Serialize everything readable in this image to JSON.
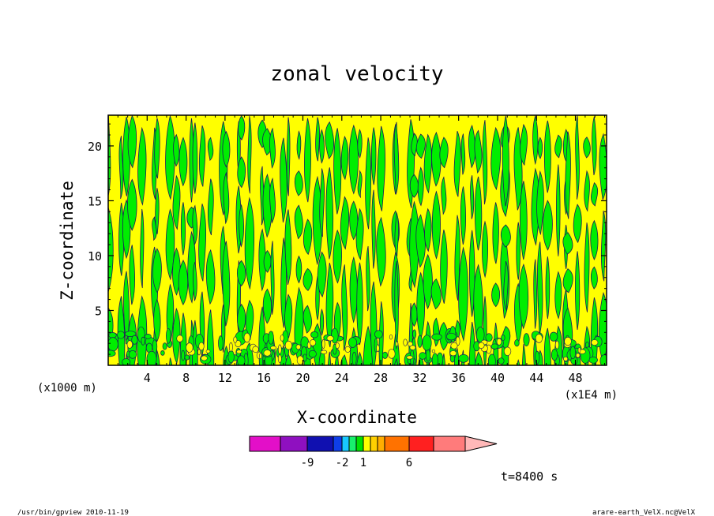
{
  "chart_data": {
    "type": "heatmap",
    "title": "zonal velocity",
    "xlabel": "X-coordinate",
    "ylabel": "Z-coordinate",
    "x_unit_left": "(x1000 m)",
    "x_unit_right": "(x1E4 m)",
    "x_ticks": [
      "4",
      "8",
      "12",
      "16",
      "20",
      "24",
      "28",
      "32",
      "36",
      "40",
      "44",
      "48"
    ],
    "x_tick_values": [
      4,
      8,
      12,
      16,
      20,
      24,
      28,
      32,
      36,
      40,
      44,
      48
    ],
    "y_ticks": [
      "5",
      "10",
      "15",
      "20"
    ],
    "y_tick_values": [
      5,
      10,
      15,
      20
    ],
    "xlim": [
      0,
      51.2
    ],
    "ylim": [
      0,
      22.8
    ],
    "dominant_fill_colors": [
      "#ffff00",
      "#00ee00"
    ],
    "colorbar": {
      "colors": [
        "#e30fc8",
        "#8f10c0",
        "#1010b0",
        "#0e3ee8",
        "#18c8ff",
        "#18f06c",
        "#00e000",
        "#ffff00",
        "#ffd000",
        "#ffae00",
        "#ff7200",
        "#ff2020",
        "#ff7b7b",
        "#ffb8b8"
      ],
      "labels": [
        "-9",
        "-2",
        "1",
        "6"
      ]
    },
    "time_label": "t=8400 s"
  },
  "footer": {
    "left": "/usr/bin/gpview  2010-11-19",
    "right": "arare-earth_VelX.nc@VelX"
  }
}
